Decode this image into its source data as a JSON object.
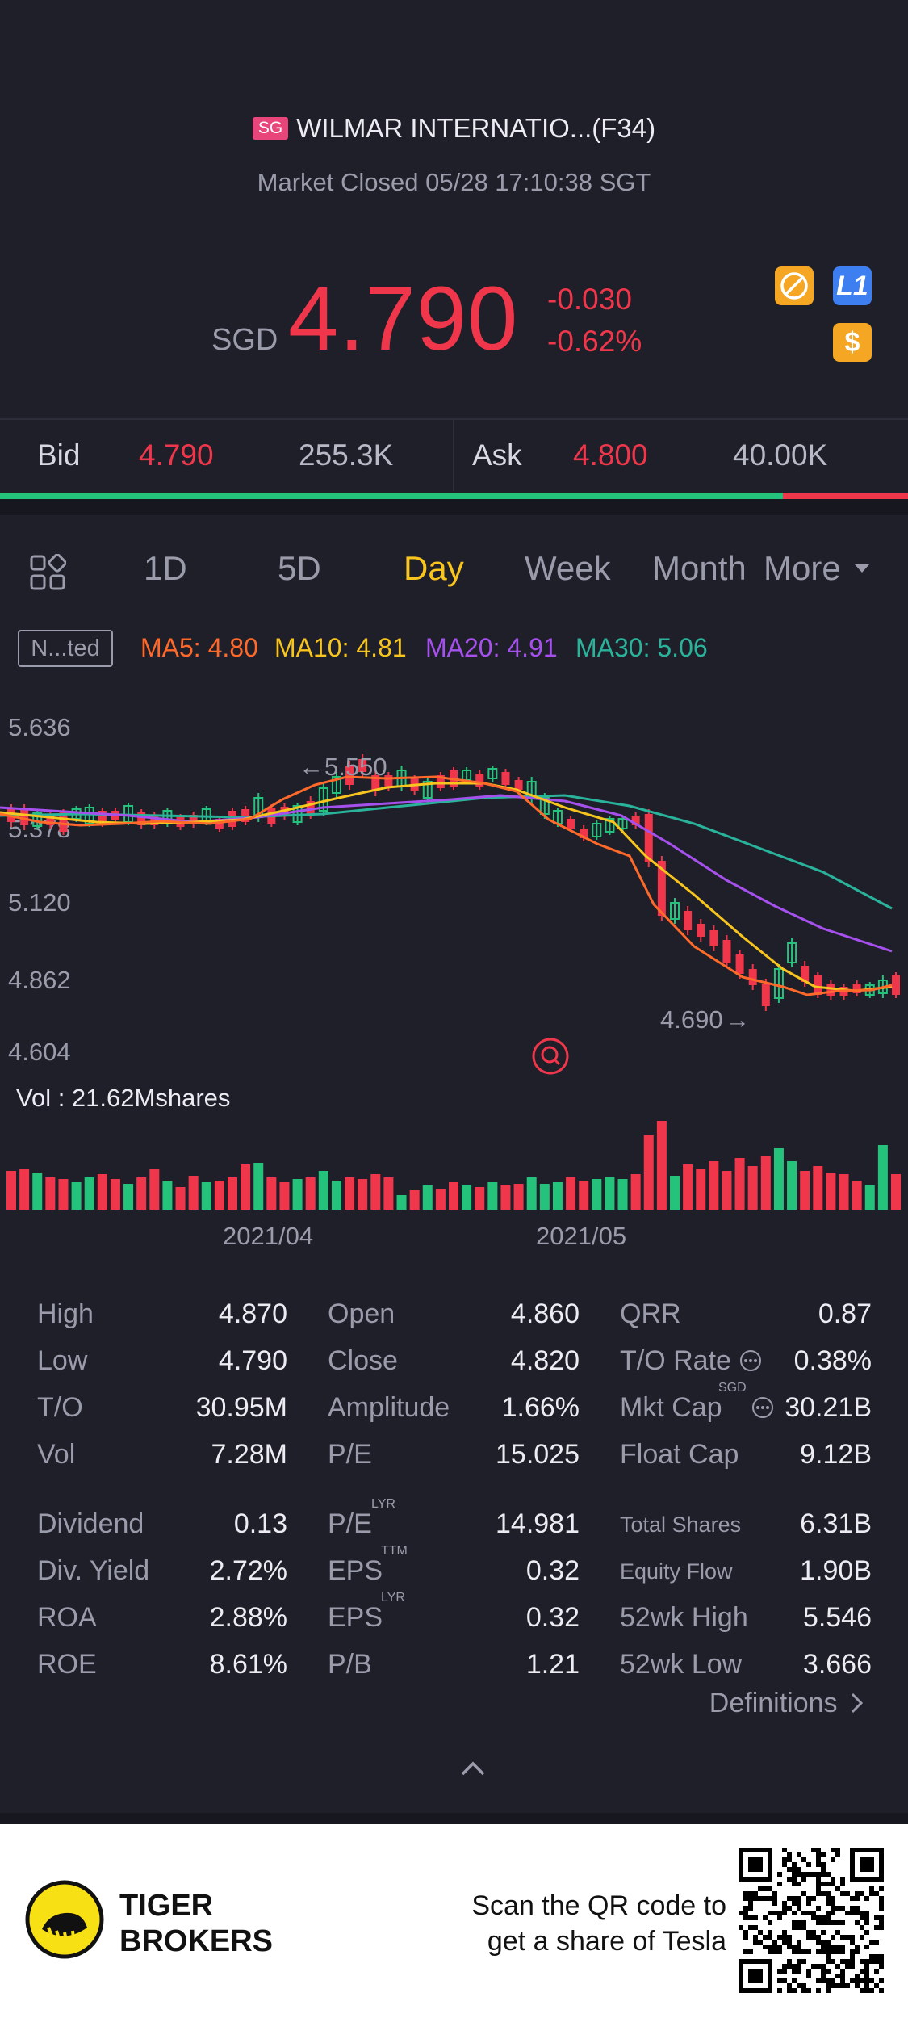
{
  "header": {
    "market_badge": "SG",
    "title": "WILMAR INTERNATIO...(F34)",
    "status": "Market Closed 05/28 17:10:38 SGT",
    "currency": "SGD",
    "price": "4.790",
    "change": "-0.030",
    "change_pct": "-0.62%",
    "l1_badge": "L1",
    "dollar_badge": "$",
    "up_color": "#25c27b",
    "down_color": "#f0364a"
  },
  "bidask": {
    "bid_label": "Bid",
    "bid_price": "4.790",
    "bid_size": "255.3K",
    "ask_label": "Ask",
    "ask_price": "4.800",
    "ask_size": "40.00K",
    "bid_share": 0.862
  },
  "tabs": {
    "items": [
      "1D",
      "5D",
      "Day",
      "Week",
      "Month",
      "More"
    ],
    "active": "Day"
  },
  "indicators": {
    "adjust": "N...ted",
    "ma5": "MA5: 4.80",
    "ma10": "MA10: 4.81",
    "ma20": "MA20: 4.91",
    "ma30": "MA30: 5.06",
    "ma5_color": "#ff6a2b",
    "ma10_color": "#f7c51e",
    "ma20_color": "#a651ee",
    "ma30_color": "#2ab39b"
  },
  "chart_data": {
    "type": "candlestick",
    "y_ticks": [
      "5.636",
      "5.378",
      "5.120",
      "4.862",
      "4.604"
    ],
    "ylim": [
      4.604,
      5.636
    ],
    "high_marker": "5.550",
    "low_marker": "4.690",
    "volume_label": "Vol : 21.62Mshares",
    "x_ticks": [
      "2021/04",
      "2021/05"
    ]
  },
  "stats": {
    "col1": [
      {
        "label": "High",
        "value": "4.870"
      },
      {
        "label": "Low",
        "value": "4.790"
      },
      {
        "label": "T/O",
        "value": "30.95M"
      },
      {
        "label": "Vol",
        "value": "7.28M"
      },
      {
        "label": "Dividend",
        "value": "0.13"
      },
      {
        "label": "Div. Yield",
        "value": "2.72%"
      },
      {
        "label": "ROA",
        "value": "2.88%"
      },
      {
        "label": "ROE",
        "value": "8.61%"
      }
    ],
    "col2": [
      {
        "label": "Open",
        "value": "4.860"
      },
      {
        "label": "Close",
        "value": "4.820"
      },
      {
        "label": "Amplitude",
        "value": "1.66%"
      },
      {
        "label": "P/E",
        "value": "15.025"
      },
      {
        "label": "P/E",
        "sup": "LYR",
        "value": "14.981"
      },
      {
        "label": "EPS",
        "sup": "TTM",
        "value": "0.32"
      },
      {
        "label": "EPS",
        "sup": "LYR",
        "value": "0.32"
      },
      {
        "label": "P/B",
        "value": "1.21"
      }
    ],
    "col3": [
      {
        "label": "QRR",
        "value": "0.87"
      },
      {
        "label": "T/O Rate",
        "value": "0.38%"
      },
      {
        "label": "Mkt Cap",
        "sup": "SGD",
        "value": "30.21B"
      },
      {
        "label": "Float Cap",
        "value": "9.12B"
      },
      {
        "label": "Total Shares",
        "value": "6.31B"
      },
      {
        "label": "Equity Flow",
        "value": "1.90B"
      },
      {
        "label": "52wk High",
        "value": "5.546"
      },
      {
        "label": "52wk Low",
        "value": "3.666"
      }
    ],
    "definitions": "Definitions"
  },
  "footer": {
    "brand_line1": "TIGER",
    "brand_line2": "BROKERS",
    "promo_line1": "Scan the QR code to",
    "promo_line2": "get a share of Tesla"
  }
}
